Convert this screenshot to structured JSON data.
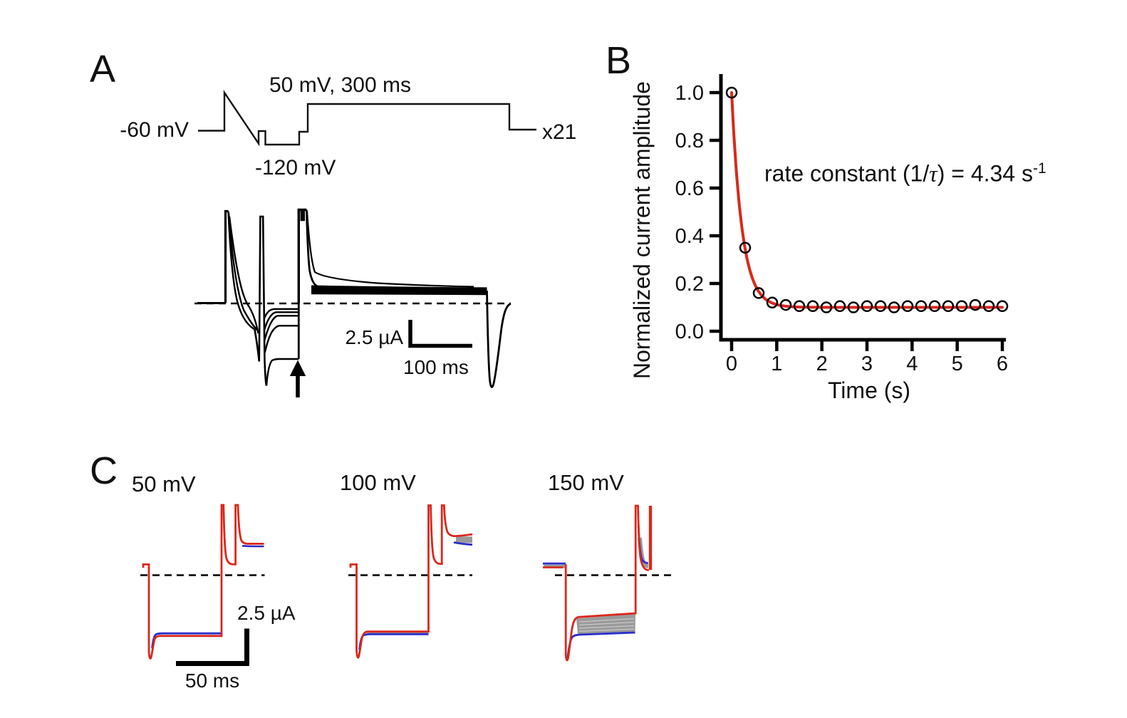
{
  "panels": {
    "A": {
      "label": "A",
      "protocol": {
        "holding_label": "-60 mV",
        "step_label": "50 mV, 300 ms",
        "hyperpol_label": "-120 mV",
        "sweeps_label": "x21"
      },
      "scalebar": {
        "vertical": "2.5 µA",
        "horizontal": "100 ms"
      }
    },
    "B": {
      "label": "B",
      "annotation_prefix": "rate constant (1/",
      "annotation_tau": "τ",
      "annotation_mid": ") = 4.34 s",
      "annotation_sup": "-1"
    },
    "C": {
      "label": "C",
      "traces": [
        {
          "label": "50 mV"
        },
        {
          "label": "100 mV"
        },
        {
          "label": "150 mV"
        }
      ],
      "scalebar": {
        "vertical": "2.5 µA",
        "horizontal": "50 ms"
      },
      "trace_colors": {
        "first_sweep": "#d9281b",
        "last_sweep": "#2a2fc9",
        "intermediate": "#9a9a9a"
      }
    }
  },
  "chart_data": {
    "type": "scatter",
    "title": "",
    "xlabel": "Time (s)",
    "ylabel": "Normalized current amplitude",
    "xlim": [
      0,
      6
    ],
    "ylim": [
      0.0,
      1.05
    ],
    "xticks": [
      0,
      1,
      2,
      3,
      4,
      5,
      6
    ],
    "yticks": [
      0.0,
      0.2,
      0.4,
      0.6,
      0.8,
      1.0
    ],
    "grid": false,
    "marker": "open-circle",
    "x": [
      0,
      0.3,
      0.6,
      0.9,
      1.2,
      1.5,
      1.8,
      2.1,
      2.4,
      2.7,
      3.0,
      3.3,
      3.6,
      3.9,
      4.2,
      4.5,
      4.8,
      5.1,
      5.4,
      5.7,
      6.0
    ],
    "y": [
      1.0,
      0.35,
      0.16,
      0.12,
      0.11,
      0.105,
      0.105,
      0.1,
      0.105,
      0.1,
      0.105,
      0.105,
      0.1,
      0.105,
      0.105,
      0.105,
      0.105,
      0.105,
      0.11,
      0.105,
      0.105
    ],
    "fit": {
      "type": "single_exponential_decay",
      "equation": "y = 0.10 + 0.90·exp(-t/τ)",
      "rate_constant_per_s": 4.34,
      "amplitude": 0.9,
      "baseline": 0.1,
      "color": "#d9281b"
    },
    "annotation": "rate constant (1/τ) = 4.34 s⁻¹"
  }
}
